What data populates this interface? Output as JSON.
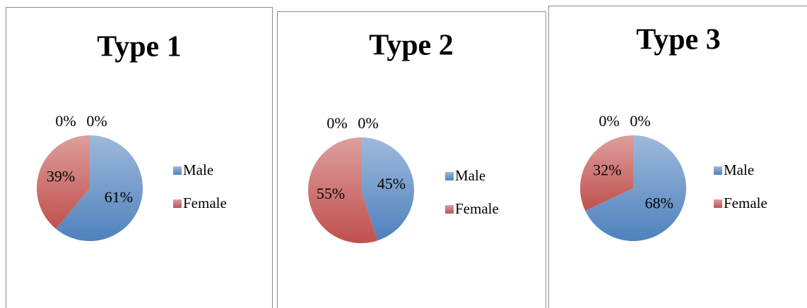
{
  "chart_data": [
    {
      "type": "pie",
      "title": "Type 1",
      "categories": [
        "Male",
        "Female",
        null,
        null
      ],
      "values": [
        61,
        39,
        0,
        0
      ],
      "value_labels": [
        "61%",
        "39%",
        "0%",
        "0%"
      ],
      "colors": [
        "#4f81bd",
        "#c0504d"
      ],
      "legend": "right"
    },
    {
      "type": "pie",
      "title": "Type 2",
      "categories": [
        "Male",
        "Female",
        null,
        null
      ],
      "values": [
        45,
        55,
        0,
        0
      ],
      "value_labels": [
        "45%",
        "55%",
        "0%",
        "0%"
      ],
      "colors": [
        "#4f81bd",
        "#c0504d"
      ],
      "legend": "right"
    },
    {
      "type": "pie",
      "title": "Type 3",
      "categories": [
        "Male",
        "Female",
        null,
        null
      ],
      "values": [
        68,
        32,
        0,
        0
      ],
      "value_labels": [
        "68%",
        "32%",
        "0%",
        "0%"
      ],
      "colors": [
        "#4f81bd",
        "#c0504d"
      ],
      "legend": "right"
    }
  ]
}
